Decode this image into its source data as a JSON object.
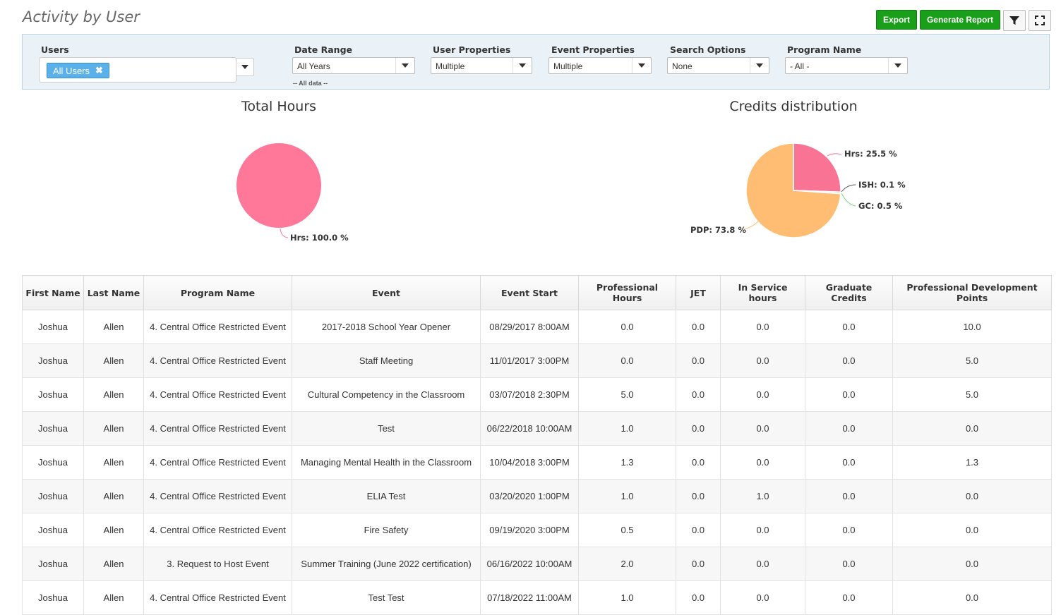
{
  "page": {
    "title": "Activity by User"
  },
  "toolbar": {
    "export_label": "Export",
    "generate_label": "Generate Report",
    "filter_icon": "filter-icon",
    "fullscreen_icon": "fullscreen-icon"
  },
  "filters": {
    "users": {
      "label": "Users",
      "chip": "All Users"
    },
    "date_range": {
      "label": "Date Range",
      "value": "All Years",
      "note": "-- All data --"
    },
    "user_properties": {
      "label": "User Properties",
      "value": "Multiple"
    },
    "event_properties": {
      "label": "Event Properties",
      "value": "Multiple"
    },
    "search_options": {
      "label": "Search Options",
      "value": "None"
    },
    "program_name": {
      "label": "Program Name",
      "value": "- All -"
    }
  },
  "charts": {
    "total_hours": {
      "title": "Total Hours",
      "slice_label": "Hrs: 100.0 %"
    },
    "credits": {
      "title": "Credits distribution",
      "labels": {
        "hrs": "Hrs: 25.5 %",
        "ish": "ISH: 0.1 %",
        "gc": "GC: 0.5 %",
        "pdp": "PDP: 73.8 %"
      }
    }
  },
  "chart_data": [
    {
      "type": "pie",
      "title": "Total Hours",
      "categories": [
        "Hrs"
      ],
      "values": [
        100.0
      ],
      "colors": [
        "#ff7799"
      ]
    },
    {
      "type": "pie",
      "title": "Credits distribution",
      "categories": [
        "Hrs",
        "ISH",
        "GC",
        "PDP"
      ],
      "values": [
        25.5,
        0.1,
        0.5,
        73.8
      ],
      "colors": [
        "#f87394",
        "#9bd36a",
        "#7fd98a",
        "#ffbd73"
      ]
    }
  ],
  "table": {
    "headers": {
      "first": "First Name",
      "last": "Last Name",
      "program": "Program Name",
      "event": "Event",
      "start": "Event Start",
      "prof_hours": "Professional Hours",
      "jet": "JET",
      "in_service": "In Service hours",
      "grad": "Graduate Credits",
      "pdp": "Professional Development Points"
    },
    "rows": [
      [
        "Joshua",
        "Allen",
        "4. Central Office Restricted Event",
        "2017-2018 School Year Opener",
        "08/29/2017 8:00AM",
        "0.0",
        "0.0",
        "0.0",
        "0.0",
        "10.0"
      ],
      [
        "Joshua",
        "Allen",
        "4. Central Office Restricted Event",
        "Staff Meeting",
        "11/01/2017 3:00PM",
        "0.0",
        "0.0",
        "0.0",
        "0.0",
        "5.0"
      ],
      [
        "Joshua",
        "Allen",
        "4. Central Office Restricted Event",
        "Cultural Competency in the Classroom",
        "03/07/2018 2:30PM",
        "5.0",
        "0.0",
        "0.0",
        "0.0",
        "5.0"
      ],
      [
        "Joshua",
        "Allen",
        "4. Central Office Restricted Event",
        "Test",
        "06/22/2018 10:00AM",
        "1.0",
        "0.0",
        "0.0",
        "0.0",
        "0.0"
      ],
      [
        "Joshua",
        "Allen",
        "4. Central Office Restricted Event",
        "Managing Mental Health in the Classroom",
        "10/04/2018 3:00PM",
        "1.3",
        "0.0",
        "0.0",
        "0.0",
        "1.3"
      ],
      [
        "Joshua",
        "Allen",
        "4. Central Office Restricted Event",
        "ELIA Test",
        "03/20/2020 1:00PM",
        "1.0",
        "0.0",
        "1.0",
        "0.0",
        "0.0"
      ],
      [
        "Joshua",
        "Allen",
        "4. Central Office Restricted Event",
        "Fire Safety",
        "09/19/2020 3:00PM",
        "0.5",
        "0.0",
        "0.0",
        "0.0",
        "0.0"
      ],
      [
        "Joshua",
        "Allen",
        "3. Request to Host Event",
        "Summer Training (June 2022 certification)",
        "06/16/2022 10:00AM",
        "2.0",
        "0.0",
        "0.0",
        "0.0",
        "0.0"
      ],
      [
        "Joshua",
        "Allen",
        "4. Central Office Restricted Event",
        "Test Test",
        "07/18/2022 11:00AM",
        "1.0",
        "0.0",
        "0.0",
        "0.0",
        "0.0"
      ]
    ]
  }
}
